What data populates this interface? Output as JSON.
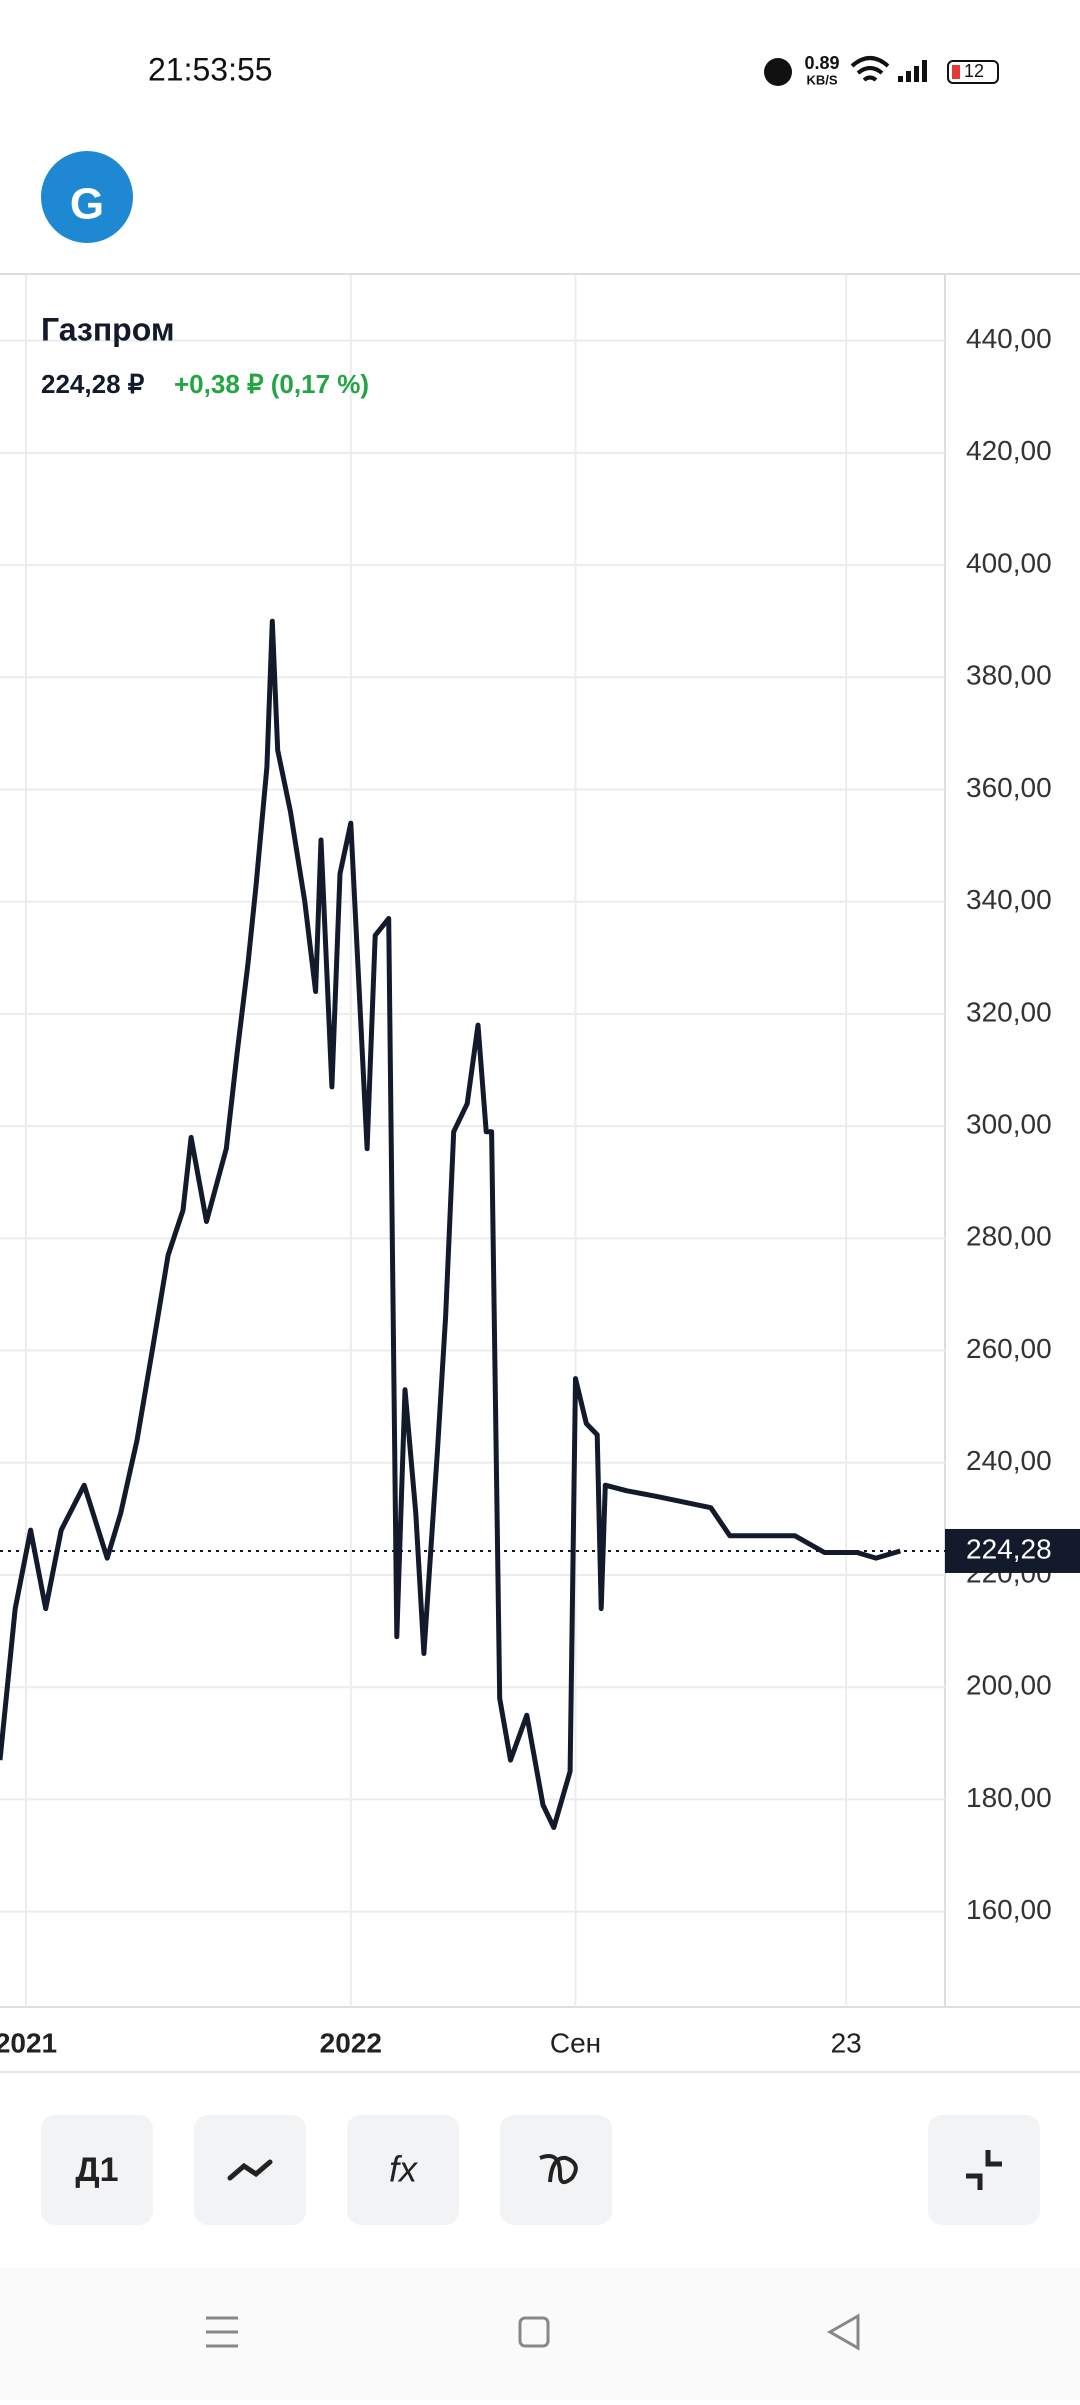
{
  "status_bar": {
    "time": "21:53:55",
    "speed": "0.89",
    "speed_unit": "KB/S",
    "battery": "12"
  },
  "header": {
    "price": "224,28 ₽",
    "change": "+0,38 ₽ (0,17 %)"
  },
  "toolbar": {
    "interval": "Д1"
  },
  "chart_data": {
    "type": "line",
    "title": "Газпром",
    "color": "#131a2b",
    "x": [
      -0.96,
      -0.4,
      0.17,
      0.73,
      1.3,
      2.15,
      3.0,
      3.5,
      4.1,
      4.7,
      5.25,
      5.8,
      6.1,
      6.67,
      7.4,
      7.8,
      8.2,
      8.5,
      8.9,
      9.1,
      9.3,
      9.77,
      10.3,
      10.7,
      10.9,
      11.3,
      11.6,
      12.0,
      12.6,
      12.9,
      13.4,
      13.7,
      14.0,
      14.4,
      14.7,
      15.2,
      15.5,
      15.8,
      16.3,
      16.7,
      17.0,
      17.2,
      17.5,
      17.9,
      18.5,
      19.1,
      19.5,
      20.1,
      20.3,
      20.7,
      21.1,
      21.25,
      21.4,
      22.2,
      23.3,
      25.3,
      26.0,
      27.3,
      28.4,
      29.5,
      30.7,
      31.4,
      32.3
    ],
    "values": [
      187,
      214,
      228,
      214,
      228,
      236,
      223,
      231,
      244,
      261,
      277,
      285,
      298,
      283,
      296,
      313,
      329,
      343,
      364,
      390,
      367,
      356,
      340,
      324,
      351,
      307,
      345,
      354,
      296,
      334,
      337,
      209,
      253,
      231,
      206,
      242,
      266,
      299,
      304,
      318,
      299,
      299,
      198,
      187,
      195,
      179,
      175,
      185,
      255,
      247,
      245,
      214,
      236,
      235,
      234,
      232,
      227,
      227,
      227,
      224,
      224,
      223,
      224.28
    ],
    "xlim": [
      -0.96,
      33.95
    ],
    "xticks": [
      {
        "value": 0,
        "label": "2021"
      },
      {
        "value": 12,
        "label": "2022"
      },
      {
        "value": 20.3,
        "label": "Сен"
      },
      {
        "value": 30.3,
        "label": "23"
      }
    ],
    "ylim": [
      143,
      451.7
    ],
    "yticks": [
      {
        "value": 160,
        "label": "160,00"
      },
      {
        "value": 180,
        "label": "180,00"
      },
      {
        "value": 200,
        "label": "200,00"
      },
      {
        "value": 220,
        "label": "220,00"
      },
      {
        "value": 240,
        "label": "240,00"
      },
      {
        "value": 260,
        "label": "260,00"
      },
      {
        "value": 280,
        "label": "280,00"
      },
      {
        "value": 300,
        "label": "300,00"
      },
      {
        "value": 320,
        "label": "320,00"
      },
      {
        "value": 340,
        "label": "340,00"
      },
      {
        "value": 360,
        "label": "360,00"
      },
      {
        "value": 380,
        "label": "380,00"
      },
      {
        "value": 400,
        "label": "400,00"
      },
      {
        "value": 420,
        "label": "420,00"
      },
      {
        "value": 440,
        "label": "440,00"
      }
    ],
    "last_price": {
      "value": 224.28,
      "label": "224,28"
    },
    "grid": true
  }
}
